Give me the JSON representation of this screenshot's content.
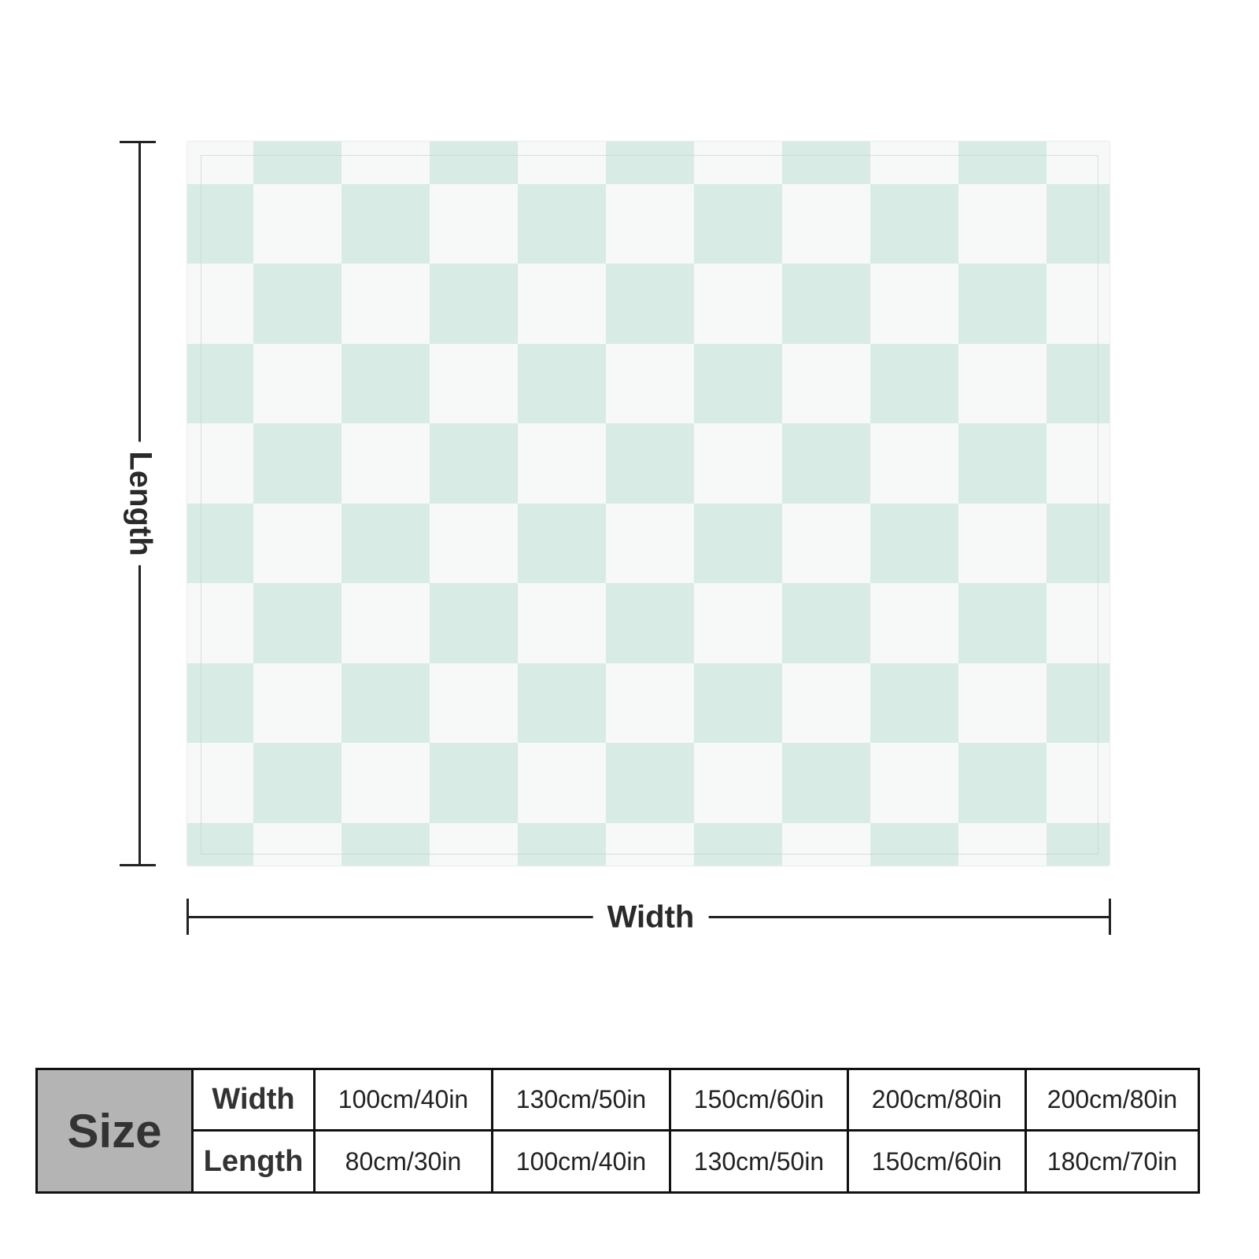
{
  "product": {
    "colors": {
      "check_green": "#d8ebe4",
      "check_white": "#f7f8f8",
      "size_cell": "#b4b4b4"
    },
    "pattern": "checkerboard"
  },
  "dimensions": {
    "length_label": "Length",
    "width_label": "Width"
  },
  "size_table": {
    "title": "Size",
    "rows": [
      {
        "label": "Width",
        "values": [
          "100cm/40in",
          "130cm/50in",
          "150cm/60in",
          "200cm/80in",
          "200cm/80in"
        ]
      },
      {
        "label": "Length",
        "values": [
          "80cm/30in",
          "100cm/40in",
          "130cm/50in",
          "150cm/60in",
          "180cm/70in"
        ]
      }
    ]
  }
}
